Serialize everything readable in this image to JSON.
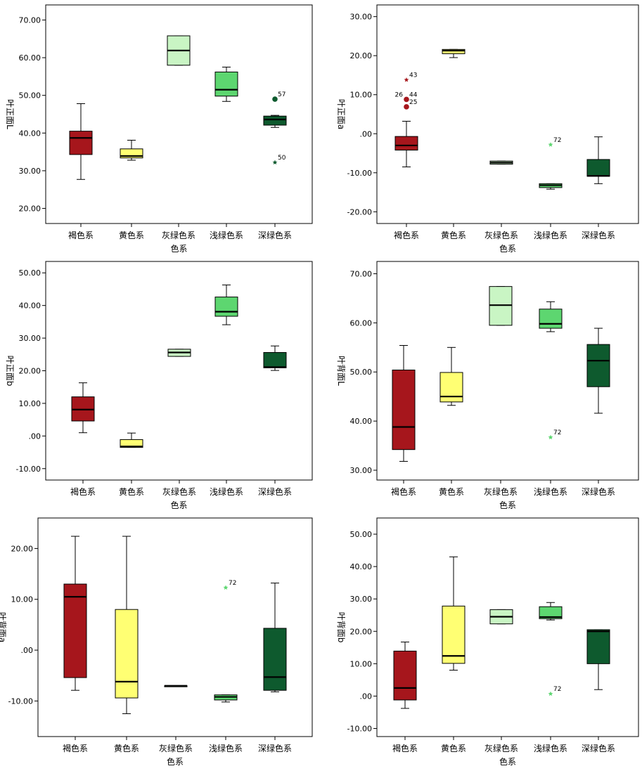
{
  "colors": {
    "褐色系": "#a6161c",
    "黄色系": "#ffff73",
    "灰绿色系": "#c9f5c4",
    "浅绿色系": "#5dd670",
    "深绿色系": "#0e5a2e"
  },
  "chart_data": [
    {
      "type": "box",
      "xlabel": "色系",
      "ylabel": "叶正面L",
      "ylim": [
        16,
        74
      ],
      "yticks": [
        20,
        30,
        40,
        50,
        60,
        70
      ],
      "ytick_labels": [
        "20.00",
        "30.00",
        "40.00",
        "50.00",
        "60.00",
        "70.00"
      ],
      "categories": [
        "褐色系",
        "黄色系",
        "灰绿色系",
        "浅绿色系",
        "深绿色系"
      ],
      "boxes": [
        {
          "min": 27.7,
          "q1": 34.3,
          "median": 38.7,
          "q3": 40.5,
          "max": 47.8
        },
        {
          "min": 32.8,
          "q1": 33.4,
          "median": 33.9,
          "q3": 35.8,
          "max": 38.1
        },
        {
          "min": 58.0,
          "q1": 58.0,
          "median": 61.9,
          "q3": 65.8,
          "max": 65.8
        },
        {
          "min": 48.4,
          "q1": 49.8,
          "median": 51.5,
          "q3": 56.2,
          "max": 57.5
        },
        {
          "min": 41.5,
          "q1": 42.1,
          "median": 43.6,
          "q3": 44.5,
          "max": 44.7
        }
      ],
      "outliers": [
        {
          "cat": 4,
          "value": 49.0,
          "label": "57",
          "kind": "circle"
        },
        {
          "cat": 4,
          "value": 32.2,
          "label": "50",
          "kind": "star"
        }
      ]
    },
    {
      "type": "box",
      "xlabel": "色系",
      "ylabel": "叶正面a",
      "ylim": [
        -23,
        33
      ],
      "yticks": [
        -20,
        -10,
        0,
        10,
        20,
        30
      ],
      "ytick_labels": [
        "-20.00",
        "-10.00",
        ".00",
        "10.00",
        "20.00",
        "30.00"
      ],
      "categories": [
        "褐色系",
        "黄色系",
        "灰绿色系",
        "浅绿色系",
        "深绿色系"
      ],
      "boxes": [
        {
          "min": -8.5,
          "q1": -4.2,
          "median": -3.0,
          "q3": -0.7,
          "max": 3.2
        },
        {
          "min": 19.5,
          "q1": 20.5,
          "median": 21.3,
          "q3": 21.6,
          "max": 21.6
        },
        {
          "min": -7.8,
          "q1": -7.8,
          "median": -7.4,
          "q3": -7.0,
          "max": -7.0
        },
        {
          "min": -14.2,
          "q1": -13.8,
          "median": -13.2,
          "q3": -12.8,
          "max": -12.8
        },
        {
          "min": -12.8,
          "q1": -10.9,
          "median": -10.8,
          "q3": -6.6,
          "max": -0.8
        }
      ],
      "outliers": [
        {
          "cat": 0,
          "value": 13.8,
          "label": "43",
          "kind": "star"
        },
        {
          "cat": 0,
          "value": 8.8,
          "label": "26",
          "kind": "circle",
          "label_side": "left"
        },
        {
          "cat": 0,
          "value": 8.8,
          "label": "44",
          "kind": "none"
        },
        {
          "cat": 0,
          "value": 6.9,
          "label": "25",
          "kind": "circle"
        },
        {
          "cat": 3,
          "value": -2.8,
          "label": "72",
          "kind": "star"
        }
      ]
    },
    {
      "type": "box",
      "xlabel": "色系",
      "ylabel": "叶正面b",
      "ylim": [
        -13.5,
        53.5
      ],
      "yticks": [
        -10,
        0,
        10,
        20,
        30,
        40,
        50
      ],
      "ytick_labels": [
        "-10.00",
        ".00",
        "10.00",
        "20.00",
        "30.00",
        "40.00",
        "50.00"
      ],
      "categories": [
        "褐色系",
        "黄色系",
        "灰绿色系",
        "浅绿色系",
        "深绿色系"
      ],
      "boxes": [
        {
          "min": 1.0,
          "q1": 4.6,
          "median": 8.1,
          "q3": 12.0,
          "max": 16.3
        },
        {
          "min": -3.5,
          "q1": -3.5,
          "median": -3.2,
          "q3": -1.1,
          "max": 0.9
        },
        {
          "min": 24.4,
          "q1": 24.4,
          "median": 25.6,
          "q3": 26.6,
          "max": 26.6
        },
        {
          "min": 34.1,
          "q1": 36.7,
          "median": 38.1,
          "q3": 42.6,
          "max": 46.3
        },
        {
          "min": 20.1,
          "q1": 20.9,
          "median": 21.1,
          "q3": 25.6,
          "max": 27.6
        }
      ],
      "outliers": []
    },
    {
      "type": "box",
      "xlabel": "色系",
      "ylabel": "叶背面L",
      "ylim": [
        28,
        72.5
      ],
      "yticks": [
        30,
        40,
        50,
        60,
        70
      ],
      "ytick_labels": [
        "30.00",
        "40.00",
        "50.00",
        "60.00",
        "70.00"
      ],
      "categories": [
        "褐色系",
        "黄色系",
        "灰绿色系",
        "浅绿色系",
        "深绿色系"
      ],
      "boxes": [
        {
          "min": 31.8,
          "q1": 34.2,
          "median": 38.8,
          "q3": 50.4,
          "max": 55.4
        },
        {
          "min": 43.2,
          "q1": 43.9,
          "median": 45.0,
          "q3": 49.9,
          "max": 55.0
        },
        {
          "min": 59.5,
          "q1": 59.5,
          "median": 63.6,
          "q3": 67.4,
          "max": 67.4
        },
        {
          "min": 58.2,
          "q1": 58.9,
          "median": 59.8,
          "q3": 62.8,
          "max": 64.3
        },
        {
          "min": 41.6,
          "q1": 47.0,
          "median": 52.3,
          "q3": 55.6,
          "max": 58.9
        }
      ],
      "outliers": [
        {
          "cat": 3,
          "value": 36.7,
          "label": "72",
          "kind": "star"
        }
      ]
    },
    {
      "type": "box",
      "xlabel": "色系",
      "ylabel": "叶背面a",
      "ylim": [
        -17,
        26
      ],
      "yticks": [
        -10,
        0,
        10,
        20
      ],
      "ytick_labels": [
        "-10.00",
        ".00",
        "10.00",
        "20.00"
      ],
      "categories": [
        "褐色系",
        "黄色系",
        "灰绿色系",
        "浅绿色系",
        "深绿色系"
      ],
      "boxes": [
        {
          "min": -7.9,
          "q1": -5.4,
          "median": 10.5,
          "q3": 13.0,
          "max": 22.4
        },
        {
          "min": -12.5,
          "q1": -9.4,
          "median": -6.2,
          "q3": 8.0,
          "max": 22.4
        },
        {
          "min": -7.0,
          "q1": -7.0,
          "median": -7.0,
          "q3": -7.0,
          "max": -7.0
        },
        {
          "min": -10.2,
          "q1": -9.8,
          "median": -9.2,
          "q3": -8.8,
          "max": -8.8
        },
        {
          "min": -8.2,
          "q1": -7.9,
          "median": -5.3,
          "q3": 4.3,
          "max": 13.2
        }
      ],
      "outliers": [
        {
          "cat": 3,
          "value": 12.3,
          "label": "72",
          "kind": "star"
        }
      ]
    },
    {
      "type": "box",
      "xlabel": "色系",
      "ylabel": "叶背面b",
      "ylim": [
        -12.5,
        55
      ],
      "yticks": [
        -10,
        0,
        10,
        20,
        30,
        40,
        50
      ],
      "ytick_labels": [
        "-10.00",
        ".00",
        "10.00",
        "20.00",
        "30.00",
        "40.00",
        "50.00"
      ],
      "categories": [
        "褐色系",
        "黄色系",
        "灰绿色系",
        "浅绿色系",
        "深绿色系"
      ],
      "boxes": [
        {
          "min": -3.8,
          "q1": -1.2,
          "median": 2.5,
          "q3": 13.9,
          "max": 16.7
        },
        {
          "min": 8.0,
          "q1": 10.1,
          "median": 12.4,
          "q3": 27.8,
          "max": 43.0
        },
        {
          "min": 22.3,
          "q1": 22.3,
          "median": 24.5,
          "q3": 26.7,
          "max": 26.7
        },
        {
          "min": 23.5,
          "q1": 23.9,
          "median": 24.4,
          "q3": 27.6,
          "max": 28.9
        },
        {
          "min": 2.0,
          "q1": 10.0,
          "median": 20.0,
          "q3": 20.5,
          "max": 20.5
        }
      ],
      "outliers": [
        {
          "cat": 3,
          "value": 0.7,
          "label": "72",
          "kind": "star"
        }
      ]
    }
  ]
}
